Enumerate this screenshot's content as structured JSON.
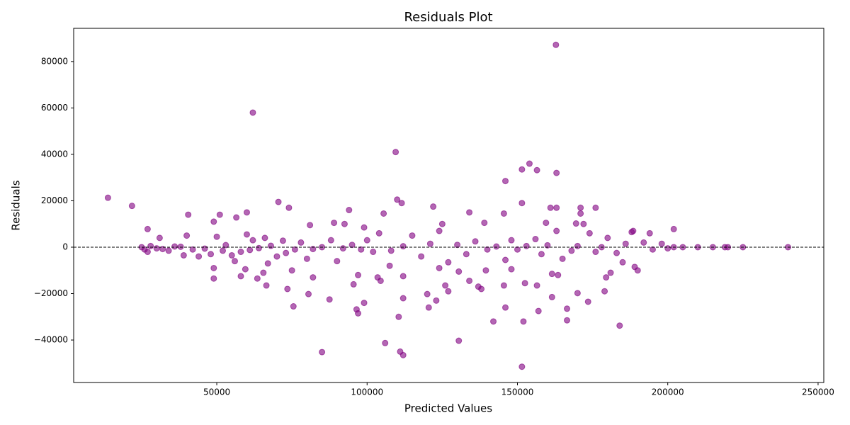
{
  "chart_data": {
    "type": "scatter",
    "title": "Residuals Plot",
    "x_label": "Predicted Values",
    "y_label": "Residuals",
    "color": "#800080",
    "alpha": 0.6,
    "reference_line": {
      "value": 0,
      "color": "#000000",
      "dashed": true
    },
    "xlim": [
      2400,
      251900
    ],
    "ylim": [
      -58300,
      94300
    ],
    "xticks": [
      50000,
      100000,
      150000,
      200000,
      250000
    ],
    "yticks": [
      {
        "value": -40000,
        "label": "−40000"
      },
      {
        "value": -20000,
        "label": "−20000"
      },
      0,
      20000,
      40000,
      60000,
      80000
    ],
    "x": [
      13800,
      21800,
      62000,
      109500,
      162800,
      146000,
      151500,
      154000,
      156500,
      163000,
      85000,
      111000,
      112000,
      151500,
      106000,
      130500,
      142000,
      152000,
      166500,
      184000,
      110500,
      97000,
      96500,
      99000,
      75500,
      120500,
      146000,
      157000,
      166500,
      127000,
      138000,
      173500,
      179000,
      120000,
      80500,
      73500,
      87500,
      112000,
      123000,
      161500,
      170000,
      40500,
      51000,
      60000,
      70500,
      74000,
      94000,
      105500,
      110000,
      111500,
      122000,
      134000,
      145500,
      151500,
      161000,
      163000,
      171000,
      176000,
      171000,
      56500,
      49000,
      89000,
      92500,
      99000,
      81000,
      125000,
      139000,
      159500,
      169500,
      172000,
      188500,
      194000,
      202000,
      27000,
      49000,
      58000,
      63500,
      66500,
      65500,
      59500,
      75000,
      82000,
      97000,
      103500,
      104500,
      112000,
      126000,
      134000,
      137000,
      139500,
      145500,
      148000,
      152500,
      156500,
      161500,
      163500,
      179500,
      181000,
      190000,
      185000,
      130500,
      124000,
      95500,
      107500,
      49000,
      25000,
      26000,
      27000,
      28000,
      30000,
      31000,
      32000,
      34000,
      36000,
      38000,
      39000,
      40000,
      42000,
      44000,
      46000,
      48000,
      50000,
      52000,
      53000,
      55000,
      56000,
      58000,
      60000,
      61000,
      62000,
      64000,
      66000,
      67000,
      68000,
      70000,
      72000,
      73000,
      76000,
      78000,
      80000,
      82000,
      85000,
      88000,
      90000,
      92000,
      95000,
      98000,
      100000,
      102000,
      104000,
      108000,
      112000,
      115000,
      118000,
      121000,
      124000,
      127000,
      130000,
      133000,
      136000,
      140000,
      143000,
      146000,
      148000,
      150000,
      153000,
      156000,
      158000,
      160000,
      163000,
      165000,
      168000,
      170000,
      174000,
      176000,
      178000,
      180000,
      183000,
      186000,
      188000,
      189000,
      192000,
      195000,
      198000,
      200000,
      202000,
      205000,
      210000,
      215000,
      219000,
      220000,
      225000,
      240000
    ],
    "y": [
      21300,
      17800,
      58000,
      41000,
      87200,
      28500,
      33500,
      36000,
      33200,
      32000,
      -45200,
      -45000,
      -46500,
      -51500,
      -41300,
      -40300,
      -32000,
      -32000,
      -31500,
      -33800,
      -30000,
      -28500,
      -26800,
      -24000,
      -25500,
      -26000,
      -26000,
      -27500,
      -26500,
      -19000,
      -18000,
      -23500,
      -19000,
      -20200,
      -20200,
      -18000,
      -22500,
      -22000,
      -23000,
      -21500,
      -19800,
      14000,
      14000,
      15000,
      19500,
      17000,
      16000,
      14500,
      20500,
      19000,
      17500,
      15000,
      14500,
      19000,
      17000,
      17000,
      17000,
      17000,
      14500,
      12800,
      11000,
      10500,
      10000,
      8500,
      9500,
      10000,
      10500,
      10500,
      10200,
      10000,
      7000,
      6000,
      7800,
      7800,
      -13500,
      -12500,
      -13500,
      -16500,
      -11000,
      -9500,
      -10000,
      -13000,
      -12000,
      -13000,
      -14500,
      -12500,
      -16500,
      -14500,
      -17000,
      -10000,
      -16500,
      -9500,
      -15500,
      -16500,
      -11500,
      -12000,
      -13000,
      -11000,
      -10000,
      -6500,
      -10500,
      -9000,
      -16000,
      -8000,
      -9000,
      0,
      -1000,
      -2000,
      500,
      -500,
      4000,
      -800,
      -1500,
      300,
      200,
      -3500,
      5000,
      -1000,
      -4000,
      -600,
      -3000,
      4500,
      -1500,
      900,
      -3500,
      -6000,
      -2000,
      5500,
      -1200,
      3000,
      -400,
      4000,
      -7000,
      600,
      -4000,
      2800,
      -2500,
      -1000,
      2000,
      -5000,
      -800,
      0,
      3000,
      -6000,
      -500,
      1000,
      -1000,
      3000,
      -2000,
      6000,
      -1500,
      400,
      5000,
      -4000,
      1500,
      7000,
      -6500,
      1000,
      -3000,
      2500,
      -1000,
      300,
      -5500,
      3000,
      -1000,
      500,
      3500,
      -3000,
      800,
      7000,
      -5000,
      -1500,
      500,
      6000,
      -2000,
      0,
      4000,
      -2500,
      1500,
      6500,
      -8500,
      2000,
      -1000,
      1500,
      -500,
      0,
      0,
      0,
      0,
      0,
      0,
      0,
      0
    ]
  }
}
